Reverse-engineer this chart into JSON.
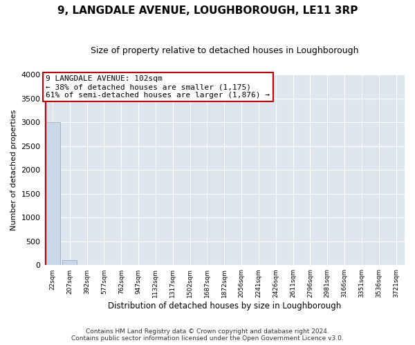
{
  "title": "9, LANGDALE AVENUE, LOUGHBOROUGH, LE11 3RP",
  "subtitle": "Size of property relative to detached houses in Loughborough",
  "xlabel": "Distribution of detached houses by size in Loughborough",
  "ylabel": "Number of detached properties",
  "footer_line1": "Contains HM Land Registry data © Crown copyright and database right 2024.",
  "footer_line2": "Contains public sector information licensed under the Open Government Licence v3.0.",
  "categories": [
    "22sqm",
    "207sqm",
    "392sqm",
    "577sqm",
    "762sqm",
    "947sqm",
    "1132sqm",
    "1317sqm",
    "1502sqm",
    "1687sqm",
    "1872sqm",
    "2056sqm",
    "2241sqm",
    "2426sqm",
    "2611sqm",
    "2796sqm",
    "2981sqm",
    "3166sqm",
    "3351sqm",
    "3536sqm",
    "3721sqm"
  ],
  "bar_values": [
    3000,
    110,
    3,
    1,
    1,
    0,
    0,
    0,
    0,
    0,
    0,
    0,
    0,
    0,
    0,
    0,
    0,
    0,
    0,
    0,
    0
  ],
  "bar_color": "#c8d8e8",
  "bar_edge_color": "#7aaac8",
  "ylim": [
    0,
    4000
  ],
  "yticks": [
    0,
    500,
    1000,
    1500,
    2000,
    2500,
    3000,
    3500,
    4000
  ],
  "annotation_title": "9 LANGDALE AVENUE: 102sqm",
  "annotation_line1": "← 38% of detached houses are smaller (1,175)",
  "annotation_line2": "61% of semi-detached houses are larger (1,876) →",
  "marker_color": "#cc0000",
  "annotation_box_color": "#ffffff",
  "annotation_box_edge": "#cc0000",
  "background_color": "#dde6ef",
  "grid_color": "#ffffff",
  "title_fontsize": 11,
  "subtitle_fontsize": 9
}
